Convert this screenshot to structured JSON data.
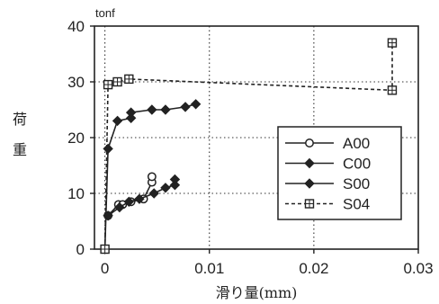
{
  "chart_data": {
    "type": "line",
    "title": "",
    "xlabel": "滑り量(mm)",
    "ylabel": "荷重",
    "yunit": "tonf",
    "xlim": [
      -0.001,
      0.03
    ],
    "ylim": [
      0,
      40
    ],
    "xticks": [
      0,
      0.01,
      0.02,
      0.03
    ],
    "xtick_labels": [
      "0",
      "0.01",
      "0.02",
      "0.03"
    ],
    "yticks": [
      0,
      10,
      20,
      30,
      40
    ],
    "ytick_labels": [
      "0",
      "10",
      "20",
      "30",
      "40"
    ],
    "grid": true,
    "legend_position": "center-right",
    "series": [
      {
        "name": "A00",
        "marker": "open-circle",
        "dash": "solid",
        "x": [
          0.0003,
          0.0013,
          0.0017,
          0.0025,
          0.0037,
          0.0045,
          0.0045
        ],
        "y": [
          6.0,
          8.0,
          8.0,
          8.5,
          9.0,
          12.0,
          13.0
        ]
      },
      {
        "name": "C00",
        "marker": "filled-diamond",
        "dash": "solid",
        "x": [
          0.0003,
          0.0014,
          0.0023,
          0.0033,
          0.0047,
          0.0058,
          0.0067,
          0.0067
        ],
        "y": [
          6.0,
          7.5,
          8.5,
          9.0,
          10.0,
          11.0,
          11.5,
          12.5
        ]
      },
      {
        "name": "S00",
        "marker": "filled-diamond",
        "dash": "solid",
        "x": [
          0.0,
          0.0003,
          0.0012,
          0.0025,
          0.0025,
          0.0045,
          0.0058,
          0.0077,
          0.0087
        ],
        "y": [
          0,
          18.0,
          23.0,
          23.5,
          24.5,
          25.0,
          25.0,
          25.5,
          26.0
        ]
      },
      {
        "name": "S04",
        "marker": "open-square-cross",
        "dash": "dashed",
        "x": [
          0.0,
          0.0003,
          0.0012,
          0.0023,
          0.0275,
          0.0275
        ],
        "y": [
          0,
          29.5,
          30.0,
          30.5,
          28.5,
          37.0
        ]
      }
    ]
  }
}
